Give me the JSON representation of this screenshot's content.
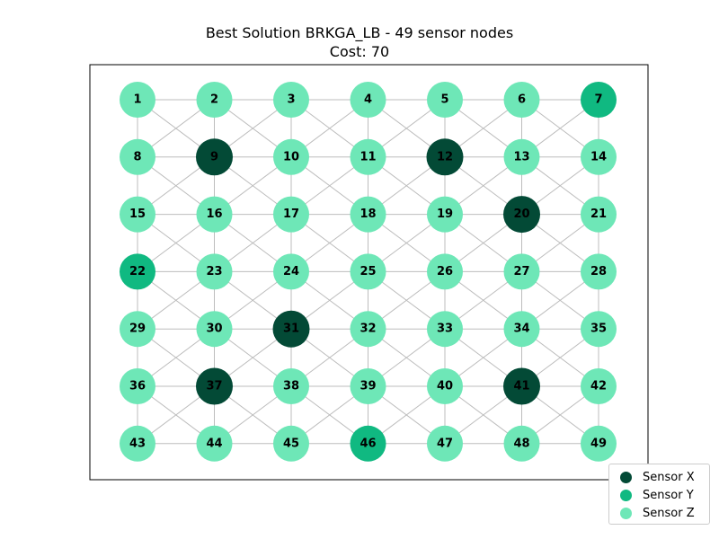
{
  "title": "Best Solution BRKGA_LB - 49 sensor nodes",
  "subtitle": "Cost: 70",
  "colors": {
    "X": "#034a36",
    "Y": "#10b981",
    "Z": "#6ee7b7",
    "edge": "#bdbdbd",
    "frame": "#000000"
  },
  "legend": [
    {
      "key": "X",
      "label": "Sensor X"
    },
    {
      "key": "Y",
      "label": "Sensor Y"
    },
    {
      "key": "Z",
      "label": "Sensor Z"
    }
  ],
  "grid": {
    "rows": 7,
    "cols": 7
  },
  "nodes": [
    {
      "id": "1",
      "type": "Z"
    },
    {
      "id": "2",
      "type": "Z"
    },
    {
      "id": "3",
      "type": "Z"
    },
    {
      "id": "4",
      "type": "Z"
    },
    {
      "id": "5",
      "type": "Z"
    },
    {
      "id": "6",
      "type": "Z"
    },
    {
      "id": "7",
      "type": "Y"
    },
    {
      "id": "8",
      "type": "Z"
    },
    {
      "id": "9",
      "type": "X"
    },
    {
      "id": "10",
      "type": "Z"
    },
    {
      "id": "11",
      "type": "Z"
    },
    {
      "id": "12",
      "type": "X"
    },
    {
      "id": "13",
      "type": "Z"
    },
    {
      "id": "14",
      "type": "Z"
    },
    {
      "id": "15",
      "type": "Z"
    },
    {
      "id": "16",
      "type": "Z"
    },
    {
      "id": "17",
      "type": "Z"
    },
    {
      "id": "18",
      "type": "Z"
    },
    {
      "id": "19",
      "type": "Z"
    },
    {
      "id": "20",
      "type": "X"
    },
    {
      "id": "21",
      "type": "Z"
    },
    {
      "id": "22",
      "type": "Y"
    },
    {
      "id": "23",
      "type": "Z"
    },
    {
      "id": "24",
      "type": "Z"
    },
    {
      "id": "25",
      "type": "Z"
    },
    {
      "id": "26",
      "type": "Z"
    },
    {
      "id": "27",
      "type": "Z"
    },
    {
      "id": "28",
      "type": "Z"
    },
    {
      "id": "29",
      "type": "Z"
    },
    {
      "id": "30",
      "type": "Z"
    },
    {
      "id": "31",
      "type": "X"
    },
    {
      "id": "32",
      "type": "Z"
    },
    {
      "id": "33",
      "type": "Z"
    },
    {
      "id": "34",
      "type": "Z"
    },
    {
      "id": "35",
      "type": "Z"
    },
    {
      "id": "36",
      "type": "Z"
    },
    {
      "id": "37",
      "type": "X"
    },
    {
      "id": "38",
      "type": "Z"
    },
    {
      "id": "39",
      "type": "Z"
    },
    {
      "id": "40",
      "type": "Z"
    },
    {
      "id": "41",
      "type": "X"
    },
    {
      "id": "42",
      "type": "Z"
    },
    {
      "id": "43",
      "type": "Z"
    },
    {
      "id": "44",
      "type": "Z"
    },
    {
      "id": "45",
      "type": "Z"
    },
    {
      "id": "46",
      "type": "Y"
    },
    {
      "id": "47",
      "type": "Z"
    },
    {
      "id": "48",
      "type": "Z"
    },
    {
      "id": "49",
      "type": "Z"
    }
  ]
}
